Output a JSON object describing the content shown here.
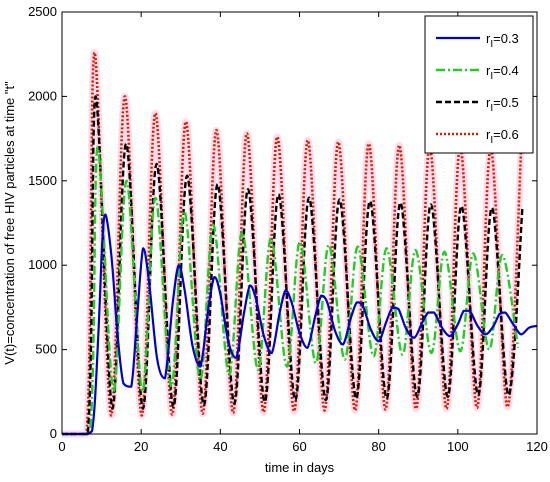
{
  "chart_data": {
    "type": "line",
    "title": "",
    "xlabel": "time in days",
    "ylabel": "V(t)=concentration of free HIV particles at time \"t\"",
    "xlim": [
      0,
      120
    ],
    "ylim": [
      0,
      2500
    ],
    "xticks": [
      "0",
      "20",
      "40",
      "60",
      "80",
      "100",
      "120"
    ],
    "yticks": [
      "0",
      "500",
      "1000",
      "1500",
      "2000",
      "2500"
    ],
    "grid": false,
    "legend_position": "top-right",
    "series": [
      {
        "name": "r",
        "subscript": "I",
        "suffix": "=0.3",
        "color": "#0000cc",
        "style": "solid",
        "x": [
          0,
          6.5,
          8,
          9.2,
          10.2,
          11,
          12.5,
          14,
          15.5,
          17.5,
          19,
          20.5,
          22,
          24,
          26,
          28,
          29.5,
          31,
          33,
          35,
          37,
          38.5,
          40,
          42,
          44,
          46,
          47.5,
          49,
          51,
          53,
          55,
          56.5,
          58,
          60,
          62,
          64,
          65.5,
          67,
          69,
          71,
          73,
          74.5,
          76,
          78,
          80,
          82,
          83.5,
          85,
          87,
          89,
          91,
          92.5,
          94,
          96,
          98,
          100,
          101.5,
          103,
          105,
          107,
          109,
          110.5,
          112,
          114,
          116,
          118,
          120
        ],
        "values": [
          0,
          0,
          100,
          600,
          1150,
          1300,
          1050,
          600,
          300,
          280,
          700,
          1100,
          900,
          450,
          330,
          780,
          1000,
          850,
          520,
          400,
          750,
          930,
          830,
          550,
          450,
          720,
          880,
          800,
          580,
          480,
          720,
          850,
          780,
          600,
          510,
          700,
          820,
          780,
          610,
          530,
          690,
          780,
          760,
          620,
          550,
          670,
          750,
          740,
          620,
          570,
          660,
          720,
          720,
          630,
          580,
          650,
          730,
          730,
          640,
          590,
          640,
          710,
          720,
          650,
          590,
          630,
          640
        ]
      },
      {
        "name": "r",
        "subscript": "I",
        "suffix": "=0.4",
        "color": "#22cc22",
        "style": "dashdot",
        "period": 7.3,
        "first_peak_x": 9,
        "first_peak_y": 1700,
        "peaks": [
          1700,
          1500,
          1400,
          1320,
          1240,
          1200,
          1160,
          1140,
          1120,
          1110,
          1100,
          1090,
          1080,
          1070,
          1060
        ],
        "troughs": [
          250,
          250,
          280,
          320,
          350,
          380,
          400,
          420,
          440,
          460,
          470,
          480,
          490,
          500,
          510
        ]
      },
      {
        "name": "r",
        "subscript": "I",
        "suffix": "=0.5",
        "color": "#000000",
        "style": "dash",
        "period": 7.7,
        "first_peak_x": 8.5,
        "first_peak_y": 2000,
        "peaks": [
          2000,
          1720,
          1600,
          1530,
          1480,
          1450,
          1420,
          1400,
          1390,
          1380,
          1370,
          1360,
          1350,
          1340,
          1340
        ],
        "troughs": [
          150,
          150,
          160,
          170,
          180,
          190,
          200,
          200,
          210,
          210,
          220,
          220,
          230,
          230,
          230
        ]
      },
      {
        "name": "r",
        "subscript": "I",
        "suffix": "=0.6",
        "color": "#cc2200",
        "style": "dot",
        "period": 7.7,
        "first_peak_x": 8.2,
        "first_peak_y": 2260,
        "peaks": [
          2260,
          2000,
          1900,
          1850,
          1800,
          1780,
          1760,
          1740,
          1730,
          1720,
          1710,
          1700,
          1700,
          1690,
          1690
        ],
        "troughs": [
          110,
          110,
          115,
          120,
          125,
          130,
          135,
          140,
          140,
          145,
          150,
          150,
          155,
          160,
          160
        ]
      }
    ]
  }
}
